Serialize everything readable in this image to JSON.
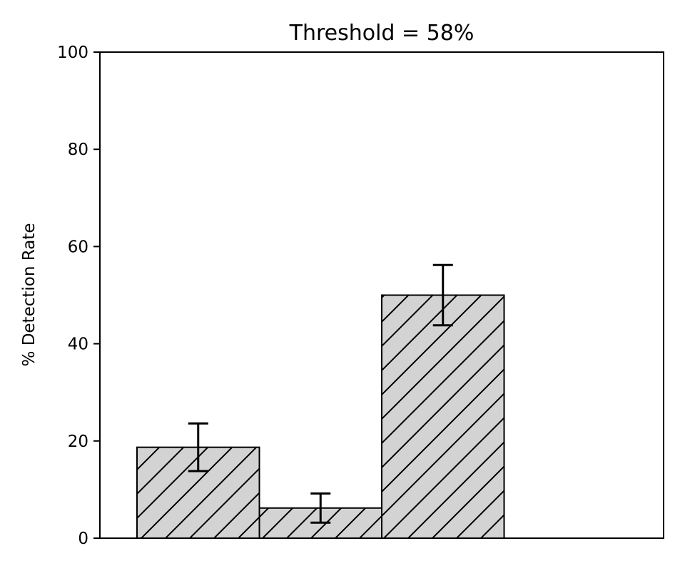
{
  "chart_data": {
    "type": "bar",
    "title": "Threshold = 58%",
    "xlabel": "",
    "ylabel": "% Detection Rate",
    "ylim": [
      0,
      100
    ],
    "yticks": [
      0,
      20,
      40,
      60,
      80,
      100
    ],
    "grid": false,
    "legend": "none",
    "bar_color": "#d3d3d3",
    "edge_color": "#000000",
    "hatch": "diagonal",
    "values": [
      18.7,
      6.2,
      50.0
    ],
    "errors": [
      4.9,
      3.0,
      6.2
    ]
  }
}
